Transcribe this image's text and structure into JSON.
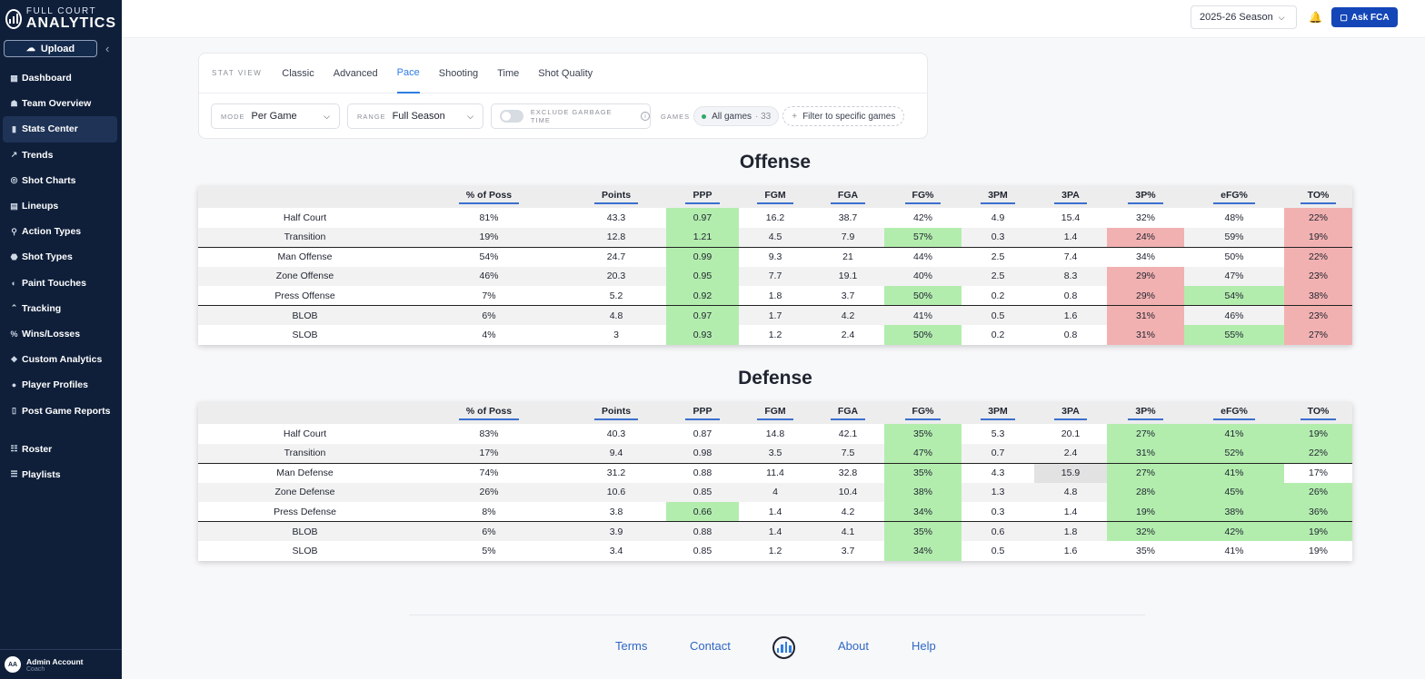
{
  "brand": {
    "top": "FULL COURT",
    "bottom": "ANALYTICS"
  },
  "sidebar": {
    "upload_label": "Upload",
    "items": [
      {
        "label": "Dashboard",
        "icon": "dashboard-icon",
        "glyph": "▦"
      },
      {
        "label": "Team Overview",
        "icon": "team-icon",
        "glyph": "☗"
      },
      {
        "label": "Stats Center",
        "icon": "bar-chart-icon",
        "glyph": "▮"
      },
      {
        "label": "Trends",
        "icon": "trend-icon",
        "glyph": "↗"
      },
      {
        "label": "Shot Charts",
        "icon": "target-icon",
        "glyph": "◎"
      },
      {
        "label": "Lineups",
        "icon": "grid-icon",
        "glyph": "▤"
      },
      {
        "label": "Action Types",
        "icon": "run-icon",
        "glyph": "⚲"
      },
      {
        "label": "Shot Types",
        "icon": "shot-icon",
        "glyph": "⬣"
      },
      {
        "label": "Paint Touches",
        "icon": "paint-icon",
        "glyph": "◐"
      },
      {
        "label": "Tracking",
        "icon": "tracking-icon",
        "glyph": "⌃"
      },
      {
        "label": "Wins/Losses",
        "icon": "percent-icon",
        "glyph": "%"
      },
      {
        "label": "Custom Analytics",
        "icon": "tags-icon",
        "glyph": "❖"
      },
      {
        "label": "Player Profiles",
        "icon": "user-icon",
        "glyph": "●"
      },
      {
        "label": "Post Game Reports",
        "icon": "clipboard-icon",
        "glyph": "▯"
      },
      {
        "label": "Roster",
        "icon": "roster-icon",
        "glyph": "☷"
      },
      {
        "label": "Playlists",
        "icon": "playlist-icon",
        "glyph": "☰"
      }
    ],
    "active": "Stats Center",
    "account": {
      "initials": "AA",
      "name": "Admin Account",
      "role": "Coach"
    }
  },
  "topbar": {
    "season": "2025-26 Season",
    "ask_label": "Ask FCA"
  },
  "filters": {
    "stat_view_label": "STAT VIEW",
    "tabs": [
      "Classic",
      "Advanced",
      "Pace",
      "Shooting",
      "Time",
      "Shot Quality"
    ],
    "active_tab": "Pace",
    "mode_label": "MODE",
    "mode_value": "Per Game",
    "range_label": "RANGE",
    "range_value": "Full Season",
    "garbage_label": "EXCLUDE GARBAGE TIME",
    "garbage_enabled": false,
    "games_label": "GAMES",
    "games_value": "All games",
    "games_count": "· 33",
    "filter_games_label": "Filter to specific games"
  },
  "columns": [
    "",
    "% of Poss",
    "Points",
    "PPP",
    "FGM",
    "FGA",
    "FG%",
    "3PM",
    "3PA",
    "3P%",
    "eFG%",
    "TO%"
  ],
  "offense": {
    "title": "Offense",
    "rows": [
      [
        "Half Court",
        "81%",
        "43.3",
        "0.97",
        "16.2",
        "38.7",
        "42%",
        "4.9",
        "15.4",
        "32%",
        "48%",
        "22%"
      ],
      [
        "Transition",
        "19%",
        "12.8",
        "1.21",
        "4.5",
        "7.9",
        "57%",
        "0.3",
        "1.4",
        "24%",
        "59%",
        "19%"
      ],
      [
        "Man Offense",
        "54%",
        "24.7",
        "0.99",
        "9.3",
        "21",
        "44%",
        "2.5",
        "7.4",
        "34%",
        "50%",
        "22%"
      ],
      [
        "Zone Offense",
        "46%",
        "20.3",
        "0.95",
        "7.7",
        "19.1",
        "40%",
        "2.5",
        "8.3",
        "29%",
        "47%",
        "23%"
      ],
      [
        "Press Offense",
        "7%",
        "5.2",
        "0.92",
        "1.8",
        "3.7",
        "50%",
        "0.2",
        "0.8",
        "29%",
        "54%",
        "38%"
      ],
      [
        "BLOB",
        "6%",
        "4.8",
        "0.97",
        "1.7",
        "4.2",
        "41%",
        "0.5",
        "1.6",
        "31%",
        "46%",
        "23%"
      ],
      [
        "SLOB",
        "4%",
        "3",
        "0.93",
        "1.2",
        "2.4",
        "50%",
        "0.2",
        "0.8",
        "31%",
        "55%",
        "27%"
      ]
    ]
  },
  "defense": {
    "title": "Defense",
    "rows": [
      [
        "Half Court",
        "83%",
        "40.3",
        "0.87",
        "14.8",
        "42.1",
        "35%",
        "5.3",
        "20.1",
        "27%",
        "41%",
        "19%"
      ],
      [
        "Transition",
        "17%",
        "9.4",
        "0.98",
        "3.5",
        "7.5",
        "47%",
        "0.7",
        "2.4",
        "31%",
        "52%",
        "22%"
      ],
      [
        "Man Defense",
        "74%",
        "31.2",
        "0.88",
        "11.4",
        "32.8",
        "35%",
        "4.3",
        "15.9",
        "27%",
        "41%",
        "17%"
      ],
      [
        "Zone Defense",
        "26%",
        "10.6",
        "0.85",
        "4",
        "10.4",
        "38%",
        "1.3",
        "4.8",
        "28%",
        "45%",
        "26%"
      ],
      [
        "Press Defense",
        "8%",
        "3.8",
        "0.66",
        "1.4",
        "4.2",
        "34%",
        "0.3",
        "1.4",
        "19%",
        "38%",
        "36%"
      ],
      [
        "BLOB",
        "6%",
        "3.9",
        "0.88",
        "1.4",
        "4.1",
        "35%",
        "0.6",
        "1.8",
        "32%",
        "42%",
        "19%"
      ],
      [
        "SLOB",
        "5%",
        "3.4",
        "0.85",
        "1.2",
        "3.7",
        "34%",
        "0.5",
        "1.6",
        "35%",
        "41%",
        "19%"
      ]
    ]
  },
  "footer": {
    "links": [
      "Terms",
      "Contact",
      "About",
      "Help"
    ]
  },
  "colors": {
    "accent": "#2e7de0",
    "sidebar": "#0f1f3a",
    "good": "#b3edae",
    "bad": "#f2b1b1",
    "ask_button": "#1446b8"
  }
}
